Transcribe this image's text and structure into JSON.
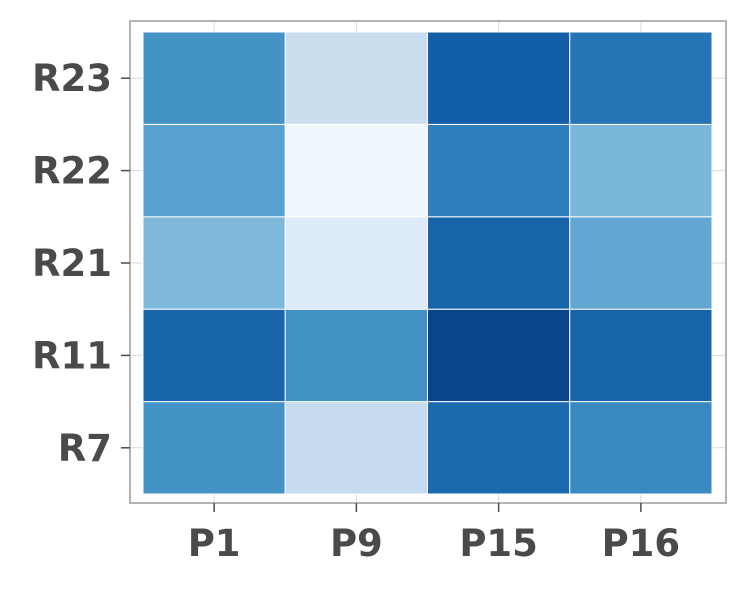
{
  "chart_data": {
    "type": "heatmap",
    "title": "",
    "xlabel": "",
    "ylabel": "",
    "x_categories": [
      "P1",
      "P9",
      "P15",
      "P16"
    ],
    "y_categories": [
      "R7",
      "R11",
      "R21",
      "R22",
      "R23"
    ],
    "values": [
      [
        0.62,
        0.25,
        0.78,
        0.66
      ],
      [
        0.8,
        0.63,
        0.92,
        0.8
      ],
      [
        0.45,
        0.13,
        0.8,
        0.53
      ],
      [
        0.56,
        0.04,
        0.7,
        0.46
      ],
      [
        0.62,
        0.23,
        0.82,
        0.74
      ]
    ],
    "colormap": "Blues",
    "color_range": [
      0,
      1
    ],
    "colorbar": false,
    "grid": true,
    "frame_color": "#b3b3b3",
    "grid_color": "#d9d9d9",
    "cell_border_color": "#ffffff",
    "tick_color": "#4a4a4a"
  }
}
